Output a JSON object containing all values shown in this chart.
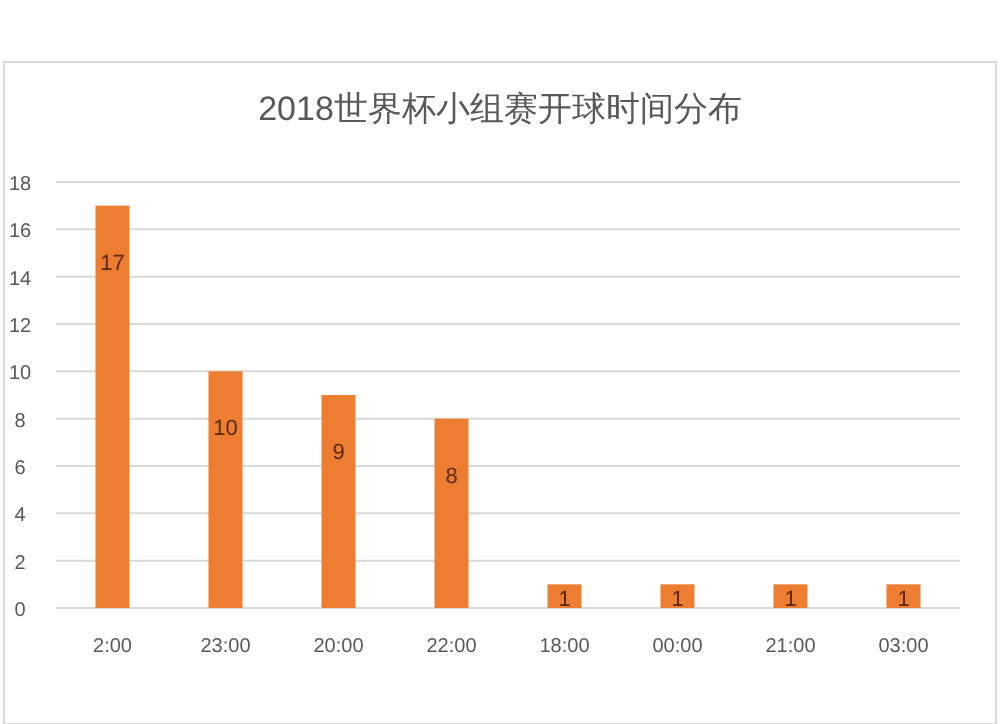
{
  "chart_data": {
    "type": "bar",
    "title": "2018世界杯小组赛开球时间分布",
    "categories": [
      "2:00",
      "23:00",
      "20:00",
      "22:00",
      "18:00",
      "00:00",
      "21:00",
      "03:00"
    ],
    "values": [
      17,
      10,
      9,
      8,
      1,
      1,
      1,
      1
    ],
    "color": "#ed7d31",
    "ylim": [
      0,
      18
    ],
    "yticks": [
      0,
      2,
      4,
      6,
      8,
      10,
      12,
      14,
      16,
      18
    ],
    "grid": "y",
    "data_labels": true
  }
}
